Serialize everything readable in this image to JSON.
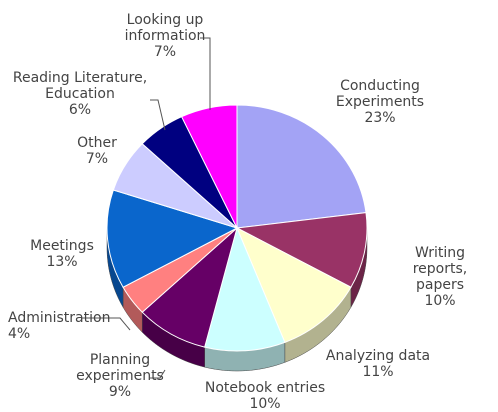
{
  "chart_data": {
    "type": "pie",
    "categories": [
      "Conducting\nExperiments",
      "Writing reports,\npapers",
      "Analyzing data",
      "Notebook entries",
      "Planning\nexperiments",
      "Administration",
      "Meetings",
      "Other",
      "Reading Literature,\nEducation",
      "Looking up\ninformation"
    ],
    "values": [
      23,
      10,
      11,
      10,
      9,
      4,
      13,
      7,
      6,
      7
    ],
    "value_labels": [
      "23%",
      "10%",
      "11%",
      "10%",
      "9%",
      "4%",
      "13%",
      "7%",
      "6%",
      "7%"
    ],
    "colors": [
      "#a3a3f5",
      "#993366",
      "#ffffcc",
      "#ccffff",
      "#660066",
      "#ff8080",
      "#0a66cc",
      "#ccccff",
      "#000080",
      "#ff00ff"
    ]
  }
}
